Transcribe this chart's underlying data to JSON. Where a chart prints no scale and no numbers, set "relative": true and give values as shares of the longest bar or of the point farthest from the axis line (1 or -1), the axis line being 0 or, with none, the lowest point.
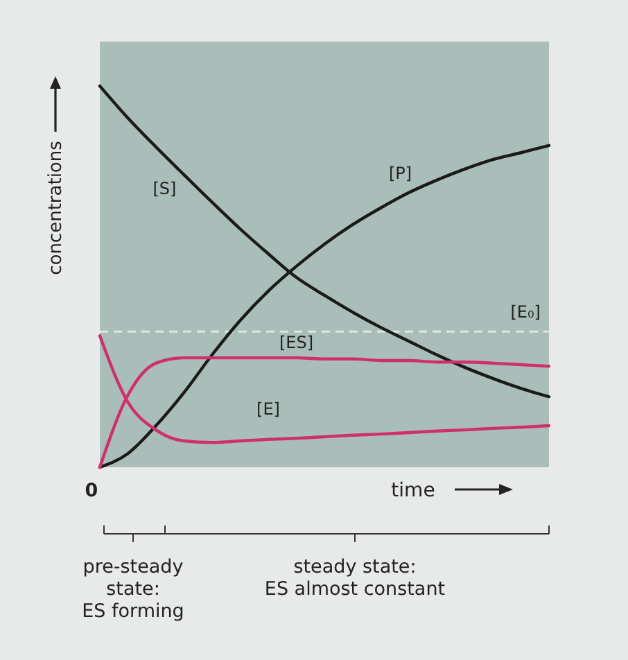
{
  "chart_data": {
    "type": "line",
    "relative": true,
    "ylabel": "concentrations",
    "xlabel": "time",
    "categories": [
      null,
      null,
      null,
      null,
      null,
      null,
      null,
      null,
      null,
      null,
      null,
      null,
      null,
      null,
      null,
      null,
      null
    ],
    "series": [
      {
        "name": "[S]",
        "color": "#1a1a1a",
        "values": [
          1.0,
          0.916,
          0.84,
          0.767,
          0.695,
          0.625,
          0.56,
          0.498,
          0.451,
          0.407,
          0.367,
          0.331,
          0.295,
          0.262,
          0.233,
          0.207,
          0.185
        ]
      },
      {
        "name": "[P]",
        "color": "#1a1a1a",
        "values": [
          0,
          0.036,
          0.109,
          0.196,
          0.295,
          0.385,
          0.462,
          0.527,
          0.585,
          0.636,
          0.68,
          0.72,
          0.753,
          0.782,
          0.807,
          0.825,
          0.844
        ]
      },
      {
        "name": "[ES]",
        "color": "#d0306a",
        "values": [
          0,
          0.189,
          0.273,
          0.287,
          0.287,
          0.287,
          0.287,
          0.287,
          0.284,
          0.284,
          0.28,
          0.28,
          0.276,
          0.276,
          0.273,
          0.269,
          0.265
        ]
      },
      {
        "name": "[E]",
        "color": "#d0306a",
        "values": [
          0.345,
          0.171,
          0.098,
          0.069,
          0.065,
          0.069,
          0.073,
          0.076,
          0.08,
          0.084,
          0.087,
          0.091,
          0.095,
          0.098,
          0.102,
          0.105,
          0.109
        ]
      }
    ],
    "ref_lines": [
      {
        "axis": "y",
        "value": 0.356,
        "label": "[E₀]",
        "color": "#dfe6e4",
        "line_style": "dashed"
      }
    ],
    "annotations": [
      "0",
      "pre-steady\nstate:\nES forming",
      "steady state:\nES almost constant"
    ],
    "grid": false,
    "legend": false,
    "marker": "none",
    "line_style": "solid"
  }
}
